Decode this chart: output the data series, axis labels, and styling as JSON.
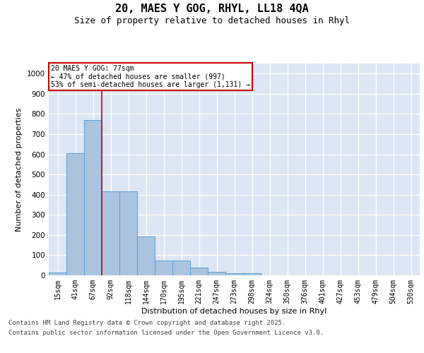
{
  "title": "20, MAES Y GOG, RHYL, LL18 4QA",
  "subtitle": "Size of property relative to detached houses in Rhyl",
  "xlabel": "Distribution of detached houses by size in Rhyl",
  "ylabel": "Number of detached properties",
  "categories": [
    "15sqm",
    "41sqm",
    "67sqm",
    "92sqm",
    "118sqm",
    "144sqm",
    "170sqm",
    "195sqm",
    "221sqm",
    "247sqm",
    "273sqm",
    "298sqm",
    "324sqm",
    "350sqm",
    "376sqm",
    "401sqm",
    "427sqm",
    "453sqm",
    "479sqm",
    "504sqm",
    "530sqm"
  ],
  "values": [
    15,
    605,
    770,
    415,
    415,
    193,
    75,
    75,
    38,
    18,
    12,
    12,
    0,
    0,
    0,
    0,
    0,
    0,
    0,
    0,
    0
  ],
  "bar_color": "#aac4e0",
  "bar_edge_color": "#5a9fd4",
  "background_color": "#dce6f5",
  "grid_color": "#ffffff",
  "annotation_box_text": "20 MAES Y GOG: 77sqm\n← 47% of detached houses are smaller (997)\n53% of semi-detached houses are larger (1,131) →",
  "annotation_box_edge_color": "#cc0000",
  "red_line_x": 2.5,
  "ylim": [
    0,
    1050
  ],
  "yticks": [
    0,
    100,
    200,
    300,
    400,
    500,
    600,
    700,
    800,
    900,
    1000
  ],
  "footer_line1": "Contains HM Land Registry data © Crown copyright and database right 2025.",
  "footer_line2": "Contains public sector information licensed under the Open Government Licence v3.0.",
  "title_fontsize": 11,
  "subtitle_fontsize": 9,
  "tick_fontsize": 7,
  "axis_label_fontsize": 8,
  "footer_fontsize": 6.5
}
